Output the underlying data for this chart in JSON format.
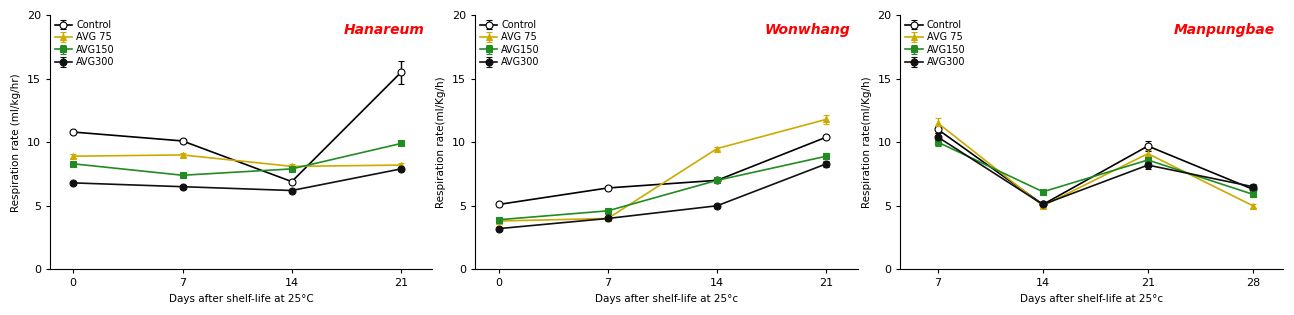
{
  "panels": [
    {
      "title": "Hanareum",
      "ylabel": "Respiration rate (ml/kg/hr)",
      "xlabel": "Days after shelf-life at 25°C",
      "xticklabels": [
        0,
        7,
        14,
        21
      ],
      "xlim": [
        -1.5,
        23
      ],
      "ylim": [
        0,
        20
      ],
      "yticks": [
        0,
        5,
        10,
        15,
        20
      ],
      "series": [
        {
          "label": "Control",
          "color": "#000000",
          "marker": "o",
          "filled": false,
          "x": [
            0,
            7,
            14,
            21
          ],
          "y": [
            10.8,
            10.1,
            6.9,
            15.5
          ],
          "yerr": [
            0.15,
            0.15,
            0.15,
            0.9
          ]
        },
        {
          "label": "AVG 75",
          "color": "#ccaa00",
          "marker": "^",
          "filled": true,
          "x": [
            0,
            7,
            14,
            21
          ],
          "y": [
            8.9,
            9.0,
            8.1,
            8.2
          ],
          "yerr": [
            0.15,
            0.15,
            0.15,
            0.15
          ]
        },
        {
          "label": "AVG150",
          "color": "#228B22",
          "marker": "s",
          "filled": true,
          "x": [
            0,
            7,
            14,
            21
          ],
          "y": [
            8.3,
            7.4,
            7.9,
            9.9
          ],
          "yerr": [
            0.15,
            0.15,
            0.15,
            0.15
          ]
        },
        {
          "label": "AVG300",
          "color": "#111111",
          "marker": "o",
          "filled": true,
          "x": [
            0,
            7,
            14,
            21
          ],
          "y": [
            6.8,
            6.5,
            6.2,
            7.9
          ],
          "yerr": [
            0.15,
            0.15,
            0.15,
            0.15
          ]
        }
      ]
    },
    {
      "title": "Wonwhang",
      "ylabel": "Respiration rate(ml/Kg/h)",
      "xlabel": "Days after shelf-life at 25°c",
      "xticklabels": [
        0,
        7,
        14,
        21
      ],
      "xlim": [
        -1.5,
        23
      ],
      "ylim": [
        0,
        20
      ],
      "yticks": [
        0,
        5,
        10,
        15,
        20
      ],
      "series": [
        {
          "label": "Control",
          "color": "#000000",
          "marker": "o",
          "filled": false,
          "x": [
            0,
            7,
            14,
            21
          ],
          "y": [
            5.1,
            6.4,
            7.0,
            10.4
          ],
          "yerr": [
            0.15,
            0.15,
            0.15,
            0.15
          ]
        },
        {
          "label": "AVG 75",
          "color": "#ccaa00",
          "marker": "^",
          "filled": true,
          "x": [
            0,
            7,
            14,
            21
          ],
          "y": [
            3.8,
            4.0,
            9.5,
            11.8
          ],
          "yerr": [
            0.15,
            0.15,
            0.15,
            0.35
          ]
        },
        {
          "label": "AVG150",
          "color": "#228B22",
          "marker": "s",
          "filled": true,
          "x": [
            0,
            7,
            14,
            21
          ],
          "y": [
            3.9,
            4.6,
            7.0,
            8.9
          ],
          "yerr": [
            0.15,
            0.15,
            0.15,
            0.25
          ]
        },
        {
          "label": "AVG300",
          "color": "#111111",
          "marker": "o",
          "filled": true,
          "x": [
            0,
            7,
            14,
            21
          ],
          "y": [
            3.2,
            4.0,
            5.0,
            8.3
          ],
          "yerr": [
            0.15,
            0.15,
            0.15,
            0.25
          ]
        }
      ]
    },
    {
      "title": "Manpungbae",
      "ylabel": "Respiration rate(ml/Kg/h)",
      "xlabel": "Days after shelf-life at 25°c",
      "xticklabels": [
        7,
        14,
        21,
        28
      ],
      "xlim": [
        4.5,
        30
      ],
      "ylim": [
        0,
        20
      ],
      "yticks": [
        0,
        5,
        10,
        15,
        20
      ],
      "series": [
        {
          "label": "Control",
          "color": "#000000",
          "marker": "o",
          "filled": false,
          "x": [
            7,
            14,
            21,
            28
          ],
          "y": [
            11.0,
            5.1,
            9.7,
            6.3
          ],
          "yerr": [
            0.3,
            0.15,
            0.4,
            0.25
          ]
        },
        {
          "label": "AVG 75",
          "color": "#ccaa00",
          "marker": "^",
          "filled": true,
          "x": [
            7,
            14,
            21,
            28
          ],
          "y": [
            11.5,
            5.0,
            9.1,
            5.0
          ],
          "yerr": [
            0.4,
            0.15,
            0.3,
            0.15
          ]
        },
        {
          "label": "AVG150",
          "color": "#228B22",
          "marker": "s",
          "filled": true,
          "x": [
            7,
            14,
            21,
            28
          ],
          "y": [
            10.0,
            6.1,
            8.6,
            5.9
          ],
          "yerr": [
            0.3,
            0.15,
            0.3,
            0.25
          ]
        },
        {
          "label": "AVG300",
          "color": "#111111",
          "marker": "o",
          "filled": true,
          "x": [
            7,
            14,
            21,
            28
          ],
          "y": [
            10.4,
            5.1,
            8.2,
            6.5
          ],
          "yerr": [
            0.3,
            0.15,
            0.3,
            0.25
          ]
        }
      ]
    }
  ],
  "title_color": "#FF0000",
  "title_fontstyle": "italic",
  "title_fontweight": "bold",
  "title_fontsize": 10,
  "label_fontsize": 7.5,
  "tick_fontsize": 8,
  "markersize": 5,
  "linewidth": 1.2,
  "capsize": 2.5,
  "elinewidth": 1.0
}
